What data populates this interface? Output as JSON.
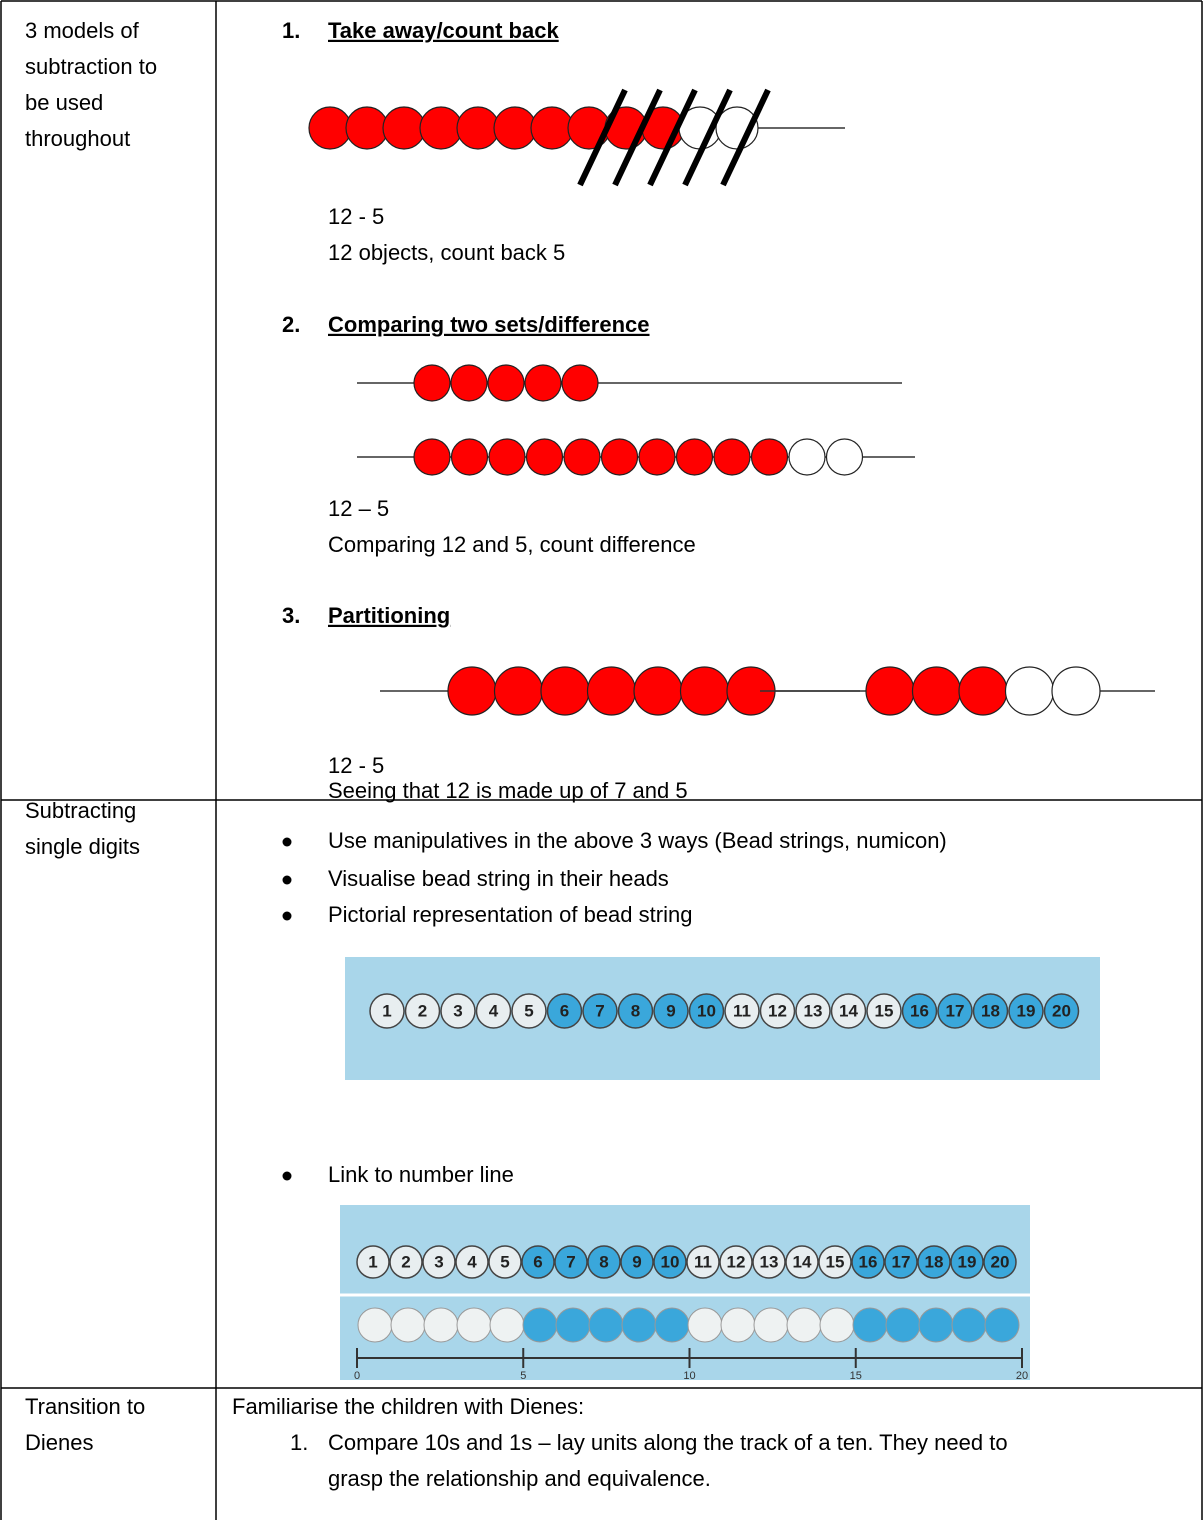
{
  "table": {
    "rows": [
      {
        "label": [
          "3 models of",
          "subtraction to",
          "be used",
          "throughout"
        ],
        "models": [
          {
            "number": "1.",
            "title": "Take away/count back",
            "lines": [
              "12 - 5",
              "12 objects, count back 5"
            ]
          },
          {
            "number": "2.",
            "title": "Comparing two sets/difference",
            "lines": [
              "12 – 5",
              "Comparing 12 and 5, count difference"
            ]
          },
          {
            "number": "3.",
            "title": "Partitioning",
            "lines": [
              "12 - 5",
              "Seeing that 12 is made up of 7 and 5"
            ]
          }
        ]
      },
      {
        "label": [
          "Subtracting",
          "single digits"
        ],
        "bullets": [
          "Use manipulatives in the above 3 ways (Bead strings, numicon)",
          "Visualise bead string in their heads",
          "Pictorial representation of bead string"
        ],
        "bullet_after": "Link to number line",
        "number_strip": [
          "1",
          "2",
          "3",
          "4",
          "5",
          "6",
          "7",
          "8",
          "9",
          "10",
          "11",
          "12",
          "13",
          "14",
          "15",
          "16",
          "17",
          "18",
          "19",
          "20"
        ],
        "number_line_labels": [
          "0",
          "5",
          "10",
          "15",
          "20"
        ]
      },
      {
        "label": [
          "Transition to",
          "Dienes"
        ],
        "intro": "Familiarise the children with Dienes:",
        "steps": [
          {
            "number": "1.",
            "lines": [
              "Compare 10s and 1s – lay units along the track of a ten. They need to",
              "grasp the relationship and equivalence."
            ]
          }
        ]
      }
    ]
  }
}
